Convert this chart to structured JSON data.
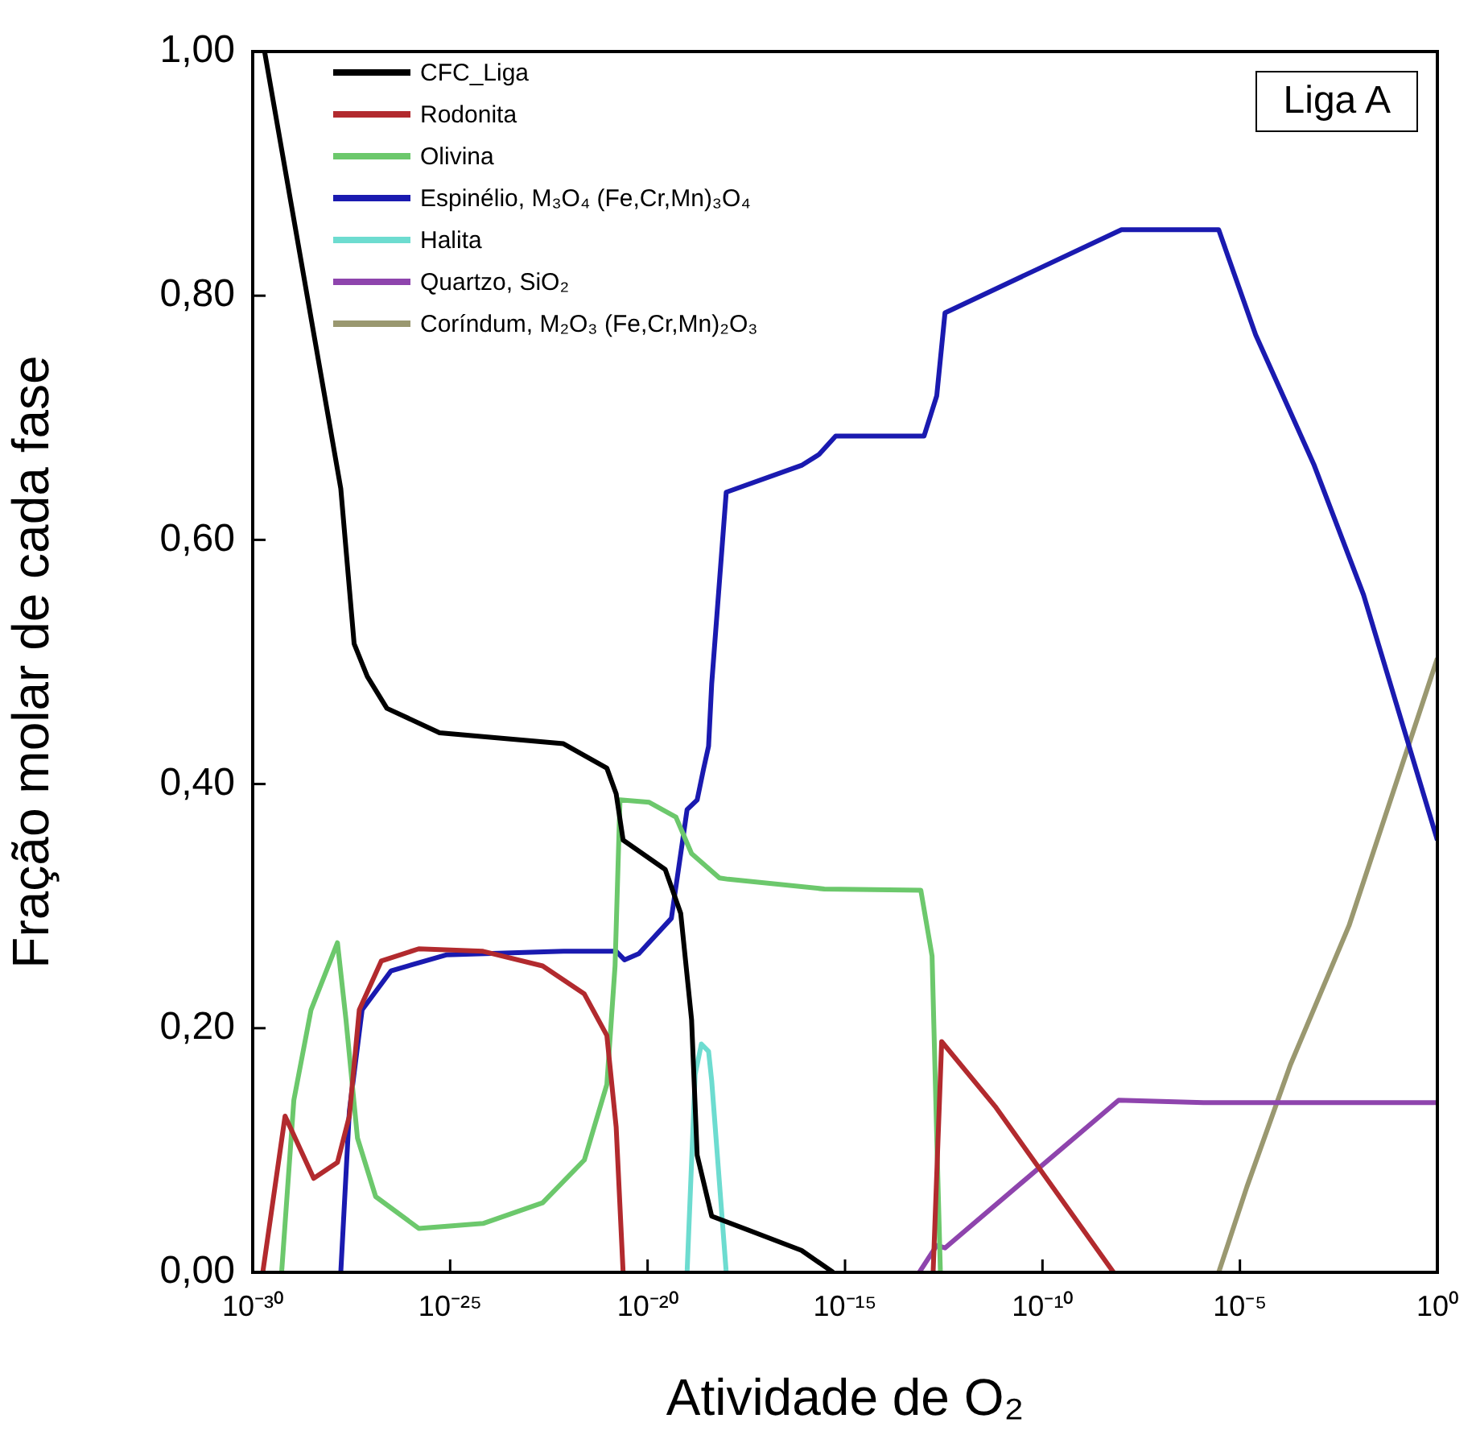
{
  "chart_data": {
    "type": "line",
    "xlabel": "Atividade de O₂",
    "ylabel": "Fração molar de cada fase",
    "annotations": [
      "Liga A"
    ],
    "log": "x",
    "xlim": [
      1e-30,
      1
    ],
    "ylim": [
      0,
      1
    ],
    "xticks": [
      {
        "value": 1e-30,
        "label": "10⁻³⁰"
      },
      {
        "value": 1e-25,
        "label": "10⁻²⁵"
      },
      {
        "value": 1e-20,
        "label": "10⁻²⁰"
      },
      {
        "value": 1e-15,
        "label": "10⁻¹⁵"
      },
      {
        "value": 1e-10,
        "label": "10⁻¹⁰"
      },
      {
        "value": 1e-05,
        "label": "10⁻⁵"
      },
      {
        "value": 1,
        "label": "10⁰"
      }
    ],
    "yticks": [
      {
        "value": 0,
        "label": "0,00"
      },
      {
        "value": 0.2,
        "label": "0,20"
      },
      {
        "value": 0.4,
        "label": "0,40"
      },
      {
        "value": 0.6,
        "label": "0,60"
      },
      {
        "value": 0.8,
        "label": "0,80"
      },
      {
        "value": 1,
        "label": "1,00"
      }
    ],
    "grid": false,
    "legend": "top left",
    "marker": "none",
    "line_style": "solid",
    "series": [
      {
        "name": "CFC_Liga",
        "color": "#000000",
        "x": [
          2e-30,
          1.7e-28,
          3.7e-28,
          8e-28,
          2.5e-27,
          5.4e-26,
          7.4e-23,
          9.3e-22,
          1.6e-21,
          2.4e-21,
          2.8e-20,
          6.9e-20,
          1.3e-19,
          1.8e-19,
          4.2e-19,
          5.8e-18,
          7.9e-17,
          5e-16
        ],
        "values": [
          1.0,
          0.642,
          0.515,
          0.488,
          0.462,
          0.442,
          0.433,
          0.413,
          0.392,
          0.354,
          0.33,
          0.294,
          0.207,
          0.096,
          0.046,
          0.032,
          0.018,
          0
        ]
      },
      {
        "name": "Rodonita",
        "color": "#b22a2e",
        "x": [
          1.8e-30,
          6.6e-30,
          3.5e-29,
          1.4e-28,
          2.8e-28,
          5e-28,
          1.8e-27,
          1.6e-26,
          6.8e-25,
          2.2e-23,
          2.5e-22,
          9.3e-22,
          1.6e-21,
          2.4e-21,
          1e-15,
          1.7e-13,
          2.8e-13,
          6.3e-12,
          6.3e-09
        ],
        "values": [
          0,
          0.128,
          0.077,
          0.09,
          0.128,
          0.215,
          0.255,
          0.265,
          0.263,
          0.251,
          0.228,
          0.194,
          0.119,
          0,
          null,
          0,
          0.189,
          0.136,
          0
        ]
      },
      {
        "name": "Olivina",
        "color": "#6cc86c",
        "x": [
          5.4e-30,
          1.1e-29,
          3e-29,
          1.4e-28,
          2.3e-28,
          4.5e-28,
          1.3e-27,
          1.6e-26,
          6.8e-25,
          2.2e-23,
          2.5e-22,
          9.3e-22,
          1.5e-21,
          2e-21,
          1.1e-20,
          5.2e-20,
          1.3e-19,
          6.6e-19,
          1.1e-18,
          3e-16,
          8.3e-14,
          1.6e-13,
          2.1e-13,
          2.6e-13
        ],
        "values": [
          0,
          0.141,
          0.215,
          0.27,
          0.207,
          0.11,
          0.062,
          0.036,
          0.04,
          0.057,
          0.092,
          0.154,
          0.251,
          0.387,
          0.385,
          0.373,
          0.343,
          0.323,
          0.322,
          0.314,
          0.313,
          0.259,
          0.111,
          0
        ]
      },
      {
        "name": "Espinélio, M₃O₄ (Fe,Cr,Mn)₃O₄",
        "color": "#1a1ab0",
        "x": [
          1.7e-28,
          2.8e-28,
          5.9e-28,
          3.2e-27,
          7.9e-26,
          7.4e-23,
          1.6e-21,
          2.6e-21,
          6e-21,
          4e-20,
          1e-19,
          1.8e-19,
          2.6e-19,
          3.5e-19,
          4.2e-19,
          9.8e-19,
          7.9e-17,
          2.2e-16,
          5.8e-16,
          1e-13,
          2.1e-13,
          3.4e-13,
          7.8e-11,
          1e-08,
          2.9e-06,
          2.5e-05,
          0.00074,
          0.0135,
          1
        ],
        "values": [
          0,
          0.132,
          0.215,
          0.247,
          0.26,
          0.263,
          0.263,
          0.256,
          0.261,
          0.29,
          0.379,
          0.387,
          0.412,
          0.431,
          0.482,
          0.639,
          0.661,
          0.67,
          0.685,
          0.685,
          0.718,
          0.786,
          0.822,
          0.854,
          0.854,
          0.768,
          0.662,
          0.555,
          0.354
        ]
      },
      {
        "name": "Halita",
        "color": "#6ddcd0",
        "x": [
          1e-19,
          1.6e-19,
          2.3e-19,
          3.5e-19,
          4.2e-19,
          9.8e-19
        ],
        "values": [
          0,
          0.162,
          0.187,
          0.181,
          0.157,
          0
        ]
      },
      {
        "name": "Quartzo, SiO₂",
        "color": "#8e44ad",
        "x": [
          7.6e-14,
          2.1e-13,
          3.4e-13,
          8.5e-09,
          1.2e-06,
          1
        ],
        "values": [
          0,
          0.022,
          0.02,
          0.141,
          0.139,
          0.139
        ]
      },
      {
        "name": "Coríndum, M₂O₃ (Fe,Cr,Mn)₂O₃",
        "color": "#9a9870",
        "x": [
          2.9e-06,
          1.5e-05,
          0.00019,
          0.0058,
          0.107,
          1
        ],
        "values": [
          0,
          0.07,
          0.17,
          0.284,
          0.408,
          0.503
        ]
      }
    ]
  }
}
